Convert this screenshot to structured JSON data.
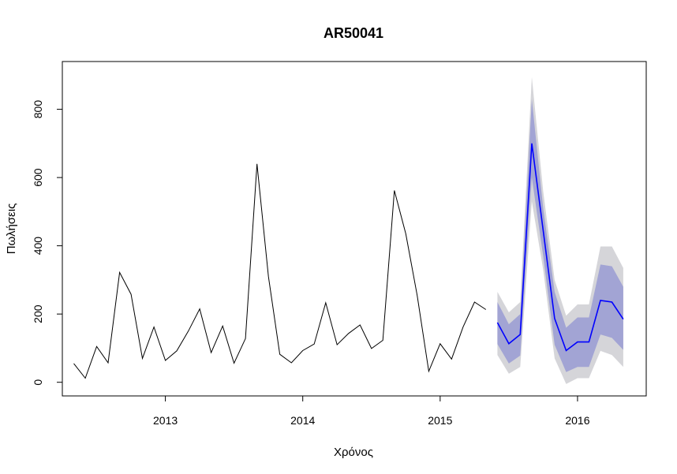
{
  "chart_data": {
    "type": "line",
    "title": "AR50041",
    "xlabel": "Χρόνος",
    "ylabel": "Πωλήσεις",
    "xlim": [
      2012.25,
      2016.5
    ],
    "ylim": [
      -40,
      940
    ],
    "x_ticks": [
      2013,
      2014,
      2015,
      2016
    ],
    "x_tick_labels": [
      "2013",
      "2014",
      "2015",
      "2016"
    ],
    "y_ticks": [
      0,
      200,
      400,
      600,
      800
    ],
    "y_tick_labels": [
      "0",
      "200",
      "400",
      "600",
      "800"
    ],
    "colors": {
      "history": "#000000",
      "forecast": "#0000ff",
      "band80": "#a2a4d4",
      "band95": "#d5d5d9"
    },
    "history": {
      "name": "observed",
      "x": [
        2012.333,
        2012.417,
        2012.5,
        2012.583,
        2012.667,
        2012.75,
        2012.833,
        2012.917,
        2013.0,
        2013.083,
        2013.167,
        2013.25,
        2013.333,
        2013.417,
        2013.5,
        2013.583,
        2013.667,
        2013.75,
        2013.833,
        2013.917,
        2014.0,
        2014.083,
        2014.167,
        2014.25,
        2014.333,
        2014.417,
        2014.5,
        2014.583,
        2014.667,
        2014.75,
        2014.833,
        2014.917,
        2015.0,
        2015.083,
        2015.167,
        2015.25,
        2015.333
      ],
      "values": [
        55,
        12,
        105,
        57,
        322,
        258,
        70,
        162,
        64,
        92,
        150,
        215,
        87,
        165,
        56,
        128,
        640,
        310,
        82,
        57,
        93,
        112,
        233,
        110,
        143,
        168,
        99,
        123,
        562,
        435,
        255,
        32,
        113,
        68,
        162,
        235,
        213
      ]
    },
    "forecast": {
      "name": "point forecast",
      "x": [
        2015.417,
        2015.5,
        2015.583,
        2015.667,
        2015.75,
        2015.833,
        2015.917,
        2016.0,
        2016.083,
        2016.167,
        2016.25,
        2016.333
      ],
      "values": [
        175,
        113,
        140,
        700,
        445,
        187,
        93,
        118,
        118,
        240,
        235,
        185
      ],
      "lo80": [
        112,
        55,
        78,
        600,
        370,
        110,
        30,
        45,
        45,
        140,
        130,
        95
      ],
      "hi80": [
        235,
        170,
        200,
        830,
        510,
        265,
        160,
        190,
        190,
        345,
        340,
        280
      ],
      "lo95": [
        80,
        25,
        45,
        530,
        330,
        70,
        -5,
        12,
        12,
        92,
        80,
        45
      ],
      "hi95": [
        265,
        205,
        235,
        895,
        560,
        300,
        195,
        228,
        228,
        398,
        398,
        335
      ]
    }
  }
}
